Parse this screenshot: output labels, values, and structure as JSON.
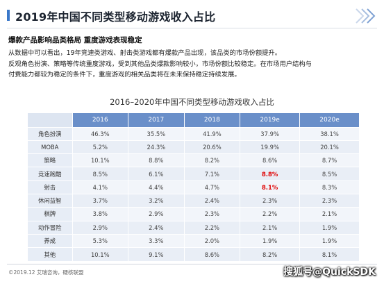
{
  "header": {
    "title": "2019年中国不同类型移动游戏收入占比"
  },
  "subtitle": "爆款产品影响品类格局 重度游戏表现稳定",
  "paragraphs": [
    "从数据中可以看出，19年竞速类游戏、射击类游戏都有爆款产品出现，该品类的市场份额提升。",
    "反观角色扮演、策略等传统重度游戏，受到其他品类爆款影响较小，市场份额比较稳定。在市场用户结构与",
    "付费能力都较为稳定的条件下，重度游戏的相关品类将在未来保持稳定持续发展。"
  ],
  "table_title": "2016–2020年中国不同类型移动游戏收入占比",
  "table": {
    "columns": [
      "2016",
      "2017",
      "2018",
      "2019e",
      "2020e"
    ],
    "rows": [
      {
        "label": "角色扮演",
        "values": [
          "46.3%",
          "35.5%",
          "41.9%",
          "37.9%",
          "38.1%"
        ]
      },
      {
        "label": "MOBA",
        "values": [
          "5.2%",
          "24.3%",
          "20.6%",
          "19.9%",
          "20.1%"
        ]
      },
      {
        "label": "策略",
        "values": [
          "10.1%",
          "8.8%",
          "8.2%",
          "8.6%",
          "8.7%"
        ]
      },
      {
        "label": "竞速跑酷",
        "values": [
          "8.5%",
          "6.1%",
          "7.1%",
          "8.8%",
          "8.5%"
        ]
      },
      {
        "label": "射击",
        "values": [
          "4.1%",
          "4.4%",
          "4.7%",
          "8.1%",
          "8.3%"
        ]
      },
      {
        "label": "休闲益智",
        "values": [
          "3.7%",
          "3.2%",
          "2.4%",
          "2.3%",
          "2.3%"
        ]
      },
      {
        "label": "棋牌",
        "values": [
          "3.8%",
          "2.9%",
          "2.3%",
          "2.2%",
          "2.1%"
        ]
      },
      {
        "label": "动作冒险",
        "values": [
          "2.9%",
          "2.4%",
          "2.2%",
          "2.1%",
          "1.9%"
        ]
      },
      {
        "label": "养成",
        "values": [
          "5.3%",
          "3.3%",
          "2.0%",
          "1.9%",
          "1.9%"
        ]
      },
      {
        "label": "其他",
        "values": [
          "10.1%",
          "9.1%",
          "8.6%",
          "8.2%",
          "8.1%"
        ]
      }
    ],
    "highlight_color": "#e00000",
    "header_color": "#6a8fc9"
  },
  "footer": {
    "source": "©2019.12 艾瑞咨询，硬核联盟"
  },
  "watermark": "搜狐号@QuickSDK",
  "colors": {
    "accent": "#3a78c9"
  }
}
